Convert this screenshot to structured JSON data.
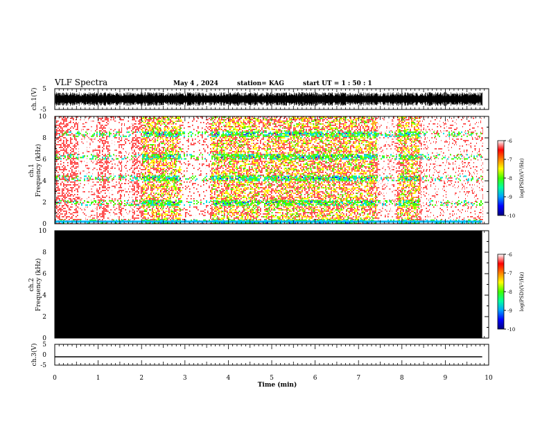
{
  "header": {
    "title": "VLF Spectra",
    "date": "May 4 , 2024",
    "station": "station= KAG",
    "start": "start  UT =  1 : 50 : 1"
  },
  "colorbar": {
    "label": "log(PSD)(V²/Hz)",
    "ticks": [
      "-6",
      "-7",
      "-8",
      "-9",
      "-10"
    ],
    "range": [
      -10,
      -6
    ],
    "colors": [
      "#000080",
      "#0000ff",
      "#00a0ff",
      "#00ffa0",
      "#40ff00",
      "#ffff00",
      "#ff8000",
      "#ff0000",
      "#ffffff"
    ]
  },
  "chart_data": [
    {
      "type": "line",
      "panel": "ch1-waveform",
      "ylabel": "ch.1(V)",
      "ylim": [
        -5,
        5
      ],
      "yticks": [
        "5",
        "-5"
      ],
      "xlim": [
        0,
        10
      ],
      "line_color": "#000000"
    },
    {
      "type": "heatmap",
      "panel": "ch1-spectrogram",
      "ylabel": "ch.1\nFrequency (kHz)",
      "ylim": [
        0,
        10
      ],
      "yticks": [
        "0",
        "2",
        "4",
        "6",
        "8",
        "10"
      ],
      "xlim": [
        0,
        10
      ],
      "data_end_min": 9.85,
      "bands_khz": [
        0.2,
        2.0,
        4.3,
        6.3,
        8.4
      ],
      "dense_segments_min": [
        [
          2.0,
          2.9
        ],
        [
          3.6,
          4.7
        ],
        [
          4.8,
          7.4
        ],
        [
          7.9,
          8.4
        ]
      ],
      "background_color": "#ff0000"
    },
    {
      "type": "heatmap",
      "panel": "ch2-spectrogram",
      "ylabel": "ch.2\nFrequency (kHz)",
      "ylim": [
        0,
        10
      ],
      "yticks": [
        "0",
        "2",
        "4",
        "6",
        "8",
        "10"
      ],
      "xlim": [
        0,
        10
      ],
      "data_end_min": 9.85,
      "fill_color": "#000000"
    },
    {
      "type": "line",
      "panel": "ch3-waveform",
      "ylabel": "ch.3(V)",
      "ylim": [
        -5,
        5
      ],
      "yticks": [
        "5",
        "0",
        "-5"
      ],
      "xlim": [
        0,
        10
      ],
      "constant_value": -1.0,
      "line_color": "#000000"
    }
  ],
  "xaxis": {
    "label": "Time (min)",
    "ticks": [
      "0",
      "1",
      "2",
      "3",
      "4",
      "5",
      "6",
      "7",
      "8",
      "9",
      "10"
    ]
  }
}
